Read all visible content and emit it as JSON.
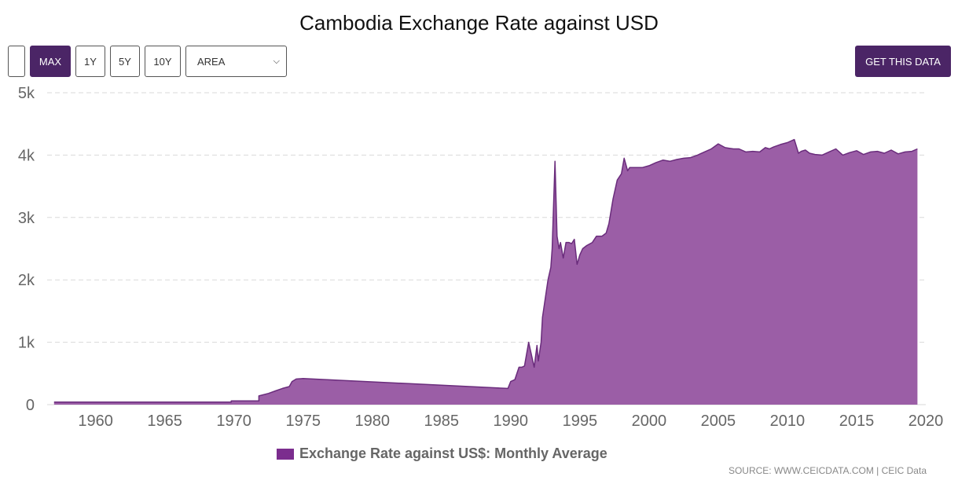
{
  "title": "Cambodia Exchange Rate against USD",
  "toolbar": {
    "blank_label": "",
    "max_label": "MAX",
    "range_1y": "1Y",
    "range_5y": "5Y",
    "range_10y": "10Y",
    "chart_type_selected": "AREA",
    "get_data_label": "GET THIS DATA"
  },
  "legend_label": "Exchange Rate against US$: Monthly Average",
  "source": "SOURCE: WWW.CEICDATA.COM | CEIC Data",
  "colors": {
    "series_fill": "#9b5ea6",
    "series_line": "#6a2c7c",
    "legend_swatch": "#7b2d8e",
    "button_active": "#4b2566",
    "grid": "#d9d9d9",
    "axis_text": "#666666"
  },
  "chart_data": {
    "type": "area",
    "title": "Cambodia Exchange Rate against USD",
    "xlabel": "",
    "ylabel": "",
    "xlim": [
      1956.5,
      2020
    ],
    "ylim": [
      0,
      5000
    ],
    "x_ticks": [
      1960,
      1965,
      1970,
      1975,
      1980,
      1985,
      1990,
      1995,
      2000,
      2005,
      2010,
      2015,
      2020
    ],
    "x_tick_labels": [
      "1960",
      "1965",
      "1970",
      "1975",
      "1980",
      "1985",
      "1990",
      "1995",
      "2000",
      "2005",
      "2010",
      "2015",
      "2020"
    ],
    "y_ticks": [
      0,
      1000,
      2000,
      3000,
      4000,
      5000
    ],
    "y_tick_labels": [
      "0",
      "1k",
      "2k",
      "3k",
      "4k",
      "5k"
    ],
    "grid": "horizontal dashed",
    "legend_position": "bottom",
    "series": [
      {
        "name": "Exchange Rate against US$: Monthly Average",
        "x": [
          1957.0,
          1969.8,
          1969.8,
          1971.8,
          1971.8,
          1972.5,
          1973.0,
          1973.5,
          1974.0,
          1974.2,
          1974.5,
          1975.0,
          1989.8,
          1990.0,
          1990.3,
          1990.6,
          1990.8,
          1991.0,
          1991.3,
          1991.5,
          1991.7,
          1991.9,
          1992.0,
          1992.2,
          1992.3,
          1992.5,
          1992.7,
          1992.9,
          1993.0,
          1993.2,
          1993.35,
          1993.5,
          1993.6,
          1993.8,
          1994.0,
          1994.2,
          1994.4,
          1994.6,
          1994.8,
          1995.0,
          1995.2,
          1995.5,
          1995.9,
          1996.2,
          1996.6,
          1996.9,
          1997.1,
          1997.4,
          1997.7,
          1998.0,
          1998.2,
          1998.45,
          1998.6,
          1998.8,
          1999.0,
          1999.5,
          2000.0,
          2000.5,
          2001.0,
          2001.5,
          2002.0,
          2002.5,
          2003.0,
          2003.5,
          2004.0,
          2004.5,
          2005.0,
          2005.5,
          2005.8,
          2006.1,
          2006.5,
          2007.0,
          2007.5,
          2008.0,
          2008.4,
          2008.7,
          2009.0,
          2009.5,
          2010.0,
          2010.5,
          2010.8,
          2011.0,
          2011.3,
          2011.6,
          2012.0,
          2012.5,
          2013.0,
          2013.5,
          2014.0,
          2014.5,
          2015.0,
          2015.5,
          2016.0,
          2016.5,
          2017.0,
          2017.5,
          2018.0,
          2018.5,
          2019.0,
          2019.4
        ],
        "values": [
          40,
          40,
          60,
          60,
          140,
          180,
          220,
          260,
          290,
          370,
          410,
          420,
          260,
          370,
          400,
          600,
          600,
          620,
          1000,
          800,
          600,
          950,
          700,
          1000,
          1400,
          1700,
          2000,
          2200,
          2500,
          3900,
          2700,
          2500,
          2600,
          2350,
          2600,
          2600,
          2580,
          2650,
          2250,
          2400,
          2500,
          2550,
          2600,
          2700,
          2700,
          2750,
          2900,
          3300,
          3600,
          3700,
          3950,
          3750,
          3800,
          3800,
          3800,
          3800,
          3830,
          3880,
          3920,
          3900,
          3930,
          3950,
          3960,
          4000,
          4050,
          4100,
          4180,
          4120,
          4110,
          4100,
          4100,
          4050,
          4060,
          4050,
          4120,
          4100,
          4130,
          4170,
          4200,
          4250,
          4030,
          4060,
          4080,
          4030,
          4010,
          4000,
          4050,
          4100,
          4000,
          4040,
          4070,
          4010,
          4050,
          4060,
          4030,
          4080,
          4020,
          4050,
          4060,
          4100
        ]
      }
    ]
  }
}
